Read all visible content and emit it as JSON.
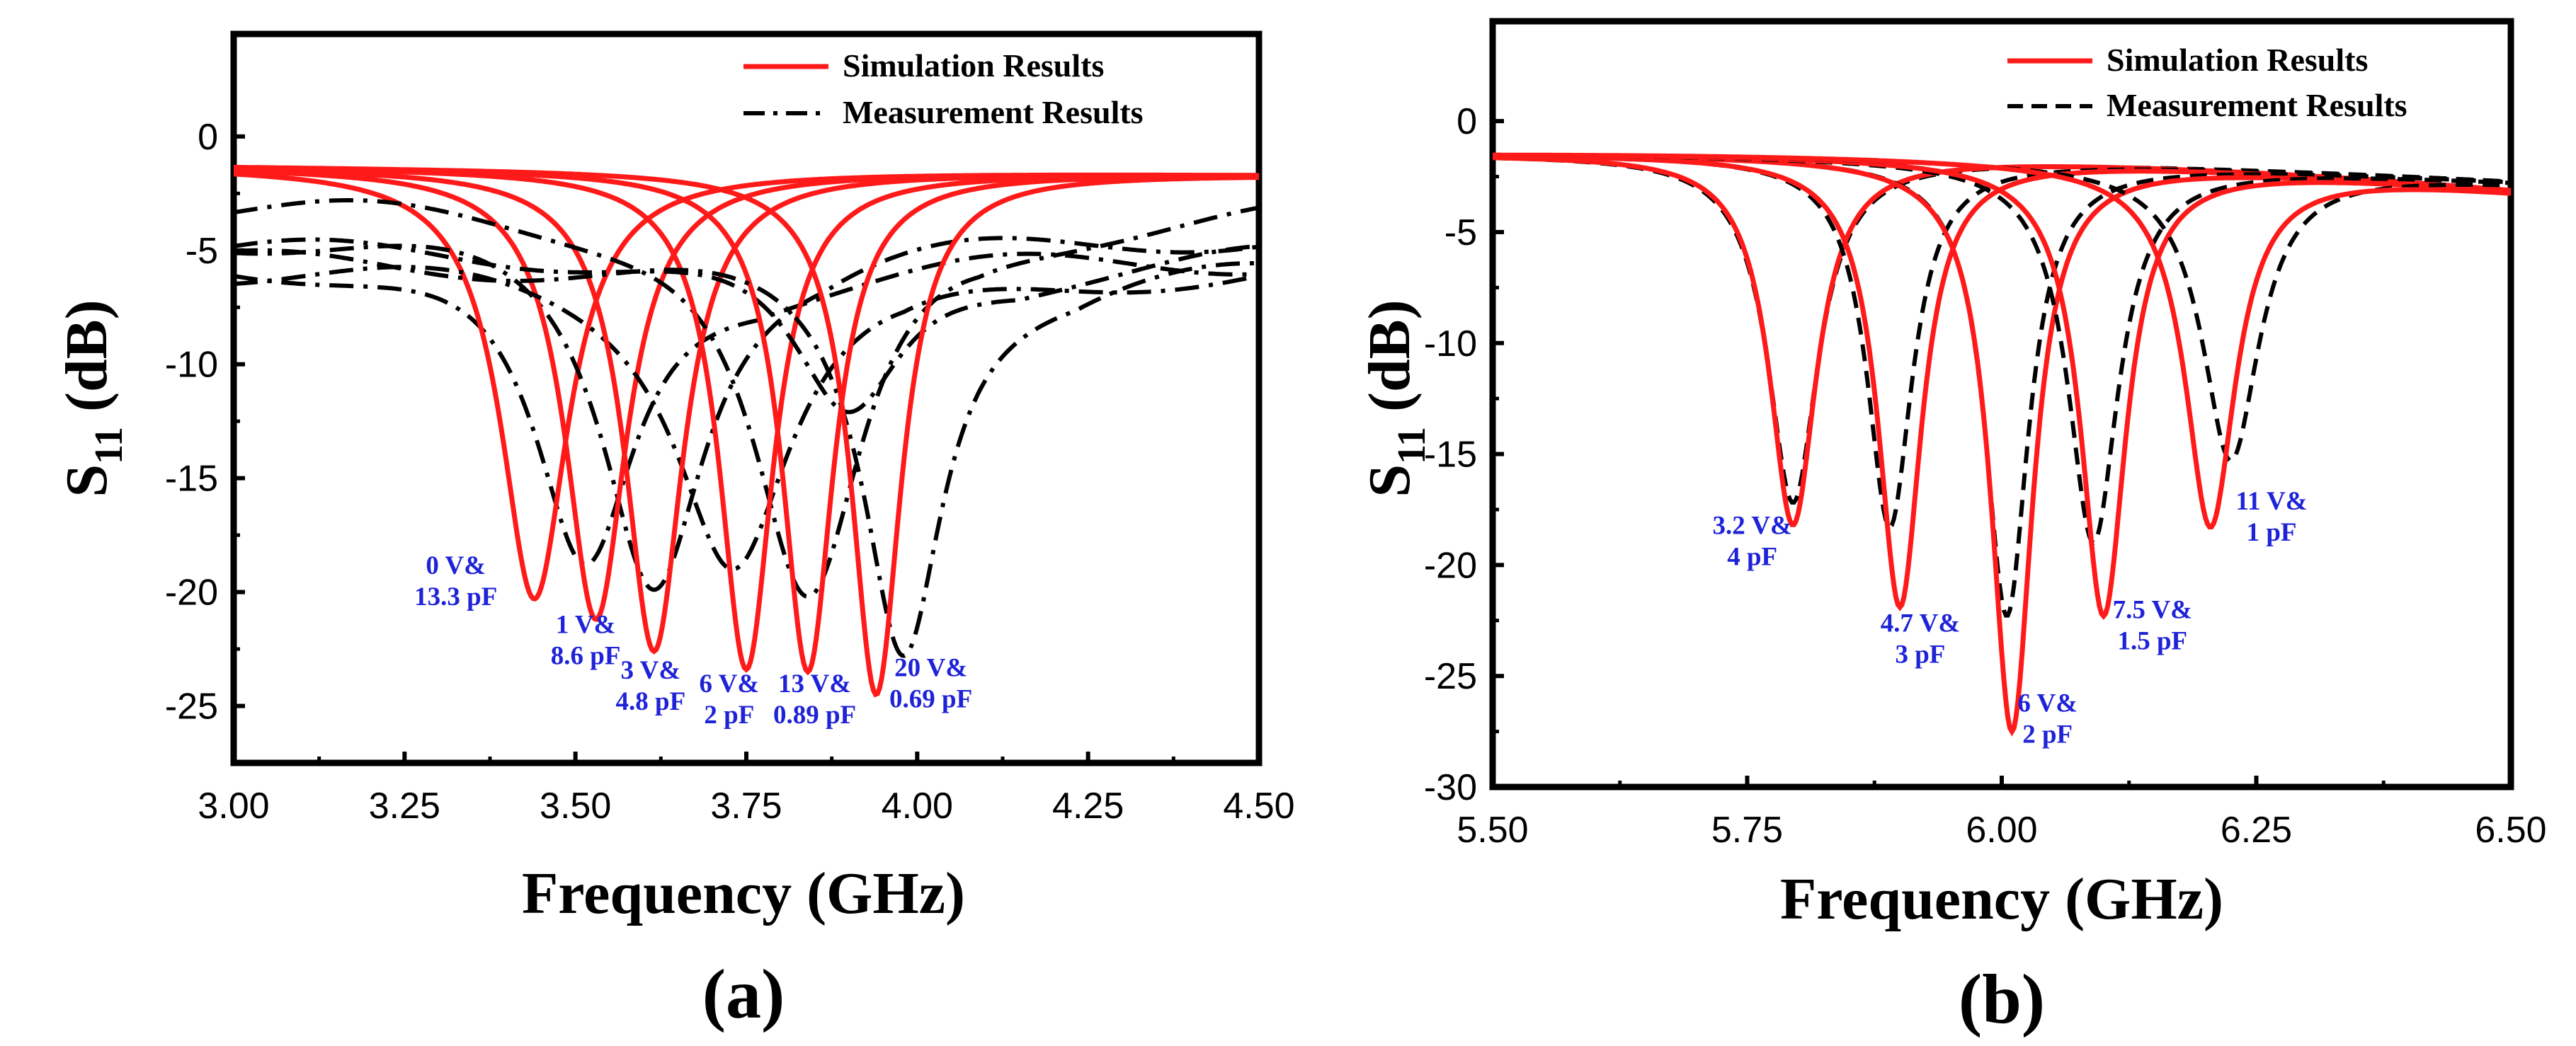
{
  "colors": {
    "simulation": "#ff1a1a",
    "measurement": "#000000",
    "annotation": "#1f23d8"
  },
  "chart_data": [
    {
      "type": "line",
      "panel_label": "(a)",
      "xlabel": "Frequency (GHz)",
      "ylabel": "S11 (dB)",
      "ylabel_main": "S",
      "ylabel_sub": "11",
      "ylabel_unit": "(dB)",
      "xlim": [
        3.0,
        4.5
      ],
      "ylim": [
        -27.5,
        4.5
      ],
      "xticks": [
        "3.00",
        "3.25",
        "3.50",
        "3.75",
        "4.00",
        "4.25",
        "4.50"
      ],
      "yticks": [
        "0",
        "-5",
        "-10",
        "-15",
        "-20",
        "-25"
      ],
      "legend": {
        "placement": "top-right",
        "entries": [
          "Simulation Results",
          "Measurement Results"
        ],
        "measurement_style": "dash-dot"
      },
      "series": [
        {
          "name": "0 V& 13.3 pF",
          "f0": 3.44,
          "min_sim": -20.3,
          "bw_sim": 0.06,
          "f_meas": 3.515,
          "min_meas": -18.8,
          "bw_meas": 0.09,
          "meas_base": -5.3
        },
        {
          "name": "1 V& 8.6 pF",
          "f0": 3.53,
          "min_sim": -21.2,
          "bw_sim": 0.055,
          "f_meas": 3.615,
          "min_meas": -19.9,
          "bw_meas": 0.09,
          "meas_base": -4.2
        },
        {
          "name": "3 V& 4.8 pF",
          "f0": 3.615,
          "min_sim": -22.6,
          "bw_sim": 0.052,
          "f_meas": 3.73,
          "min_meas": -19.0,
          "bw_meas": 0.1,
          "meas_base": -5.7
        },
        {
          "name": "6 V& 2 pF",
          "f0": 3.75,
          "min_sim": -23.4,
          "bw_sim": 0.048,
          "f_meas": 3.84,
          "min_meas": -20.2,
          "bw_meas": 0.1,
          "meas_base": -3.0
        },
        {
          "name": "13 V& 0.89 pF",
          "f0": 3.84,
          "min_sim": -23.5,
          "bw_sim": 0.046,
          "f_meas": 3.9,
          "min_meas": -12.1,
          "bw_meas": 0.1,
          "meas_base": -5.0
        },
        {
          "name": "20 V& 0.69 pF",
          "f0": 3.94,
          "min_sim": -24.5,
          "bw_sim": 0.045,
          "f_meas": 3.98,
          "min_meas": -22.8,
          "bw_meas": 0.07,
          "meas_base": -5.5
        }
      ],
      "annotations": [
        {
          "lines": [
            "0 V&",
            "13.3 pF"
          ],
          "x": 3.325,
          "y": -19.2
        },
        {
          "lines": [
            "1 V&",
            "8.6 pF"
          ],
          "x": 3.515,
          "y": -21.8
        },
        {
          "lines": [
            "3 V&",
            "4.8 pF"
          ],
          "x": 3.61,
          "y": -23.8
        },
        {
          "lines": [
            "6 V&",
            "2 pF"
          ],
          "x": 3.725,
          "y": -24.4
        },
        {
          "lines": [
            "13 V&",
            "0.89 pF"
          ],
          "x": 3.85,
          "y": -24.4
        },
        {
          "lines": [
            "20 V&",
            "0.69 pF"
          ],
          "x": 4.02,
          "y": -23.7
        }
      ]
    },
    {
      "type": "line",
      "panel_label": "(b)",
      "xlabel": "Frequency (GHz)",
      "ylabel": "S11 (dB)",
      "ylabel_main": "S",
      "ylabel_sub": "11",
      "ylabel_unit": "(dB)",
      "xlim": [
        5.5,
        6.5
      ],
      "ylim": [
        -30,
        4.5
      ],
      "xticks": [
        "5.50",
        "5.75",
        "6.00",
        "6.25",
        "6.50"
      ],
      "yticks": [
        "0",
        "-5",
        "-10",
        "-15",
        "-20",
        "-25",
        "-30"
      ],
      "legend": {
        "placement": "top-right",
        "entries": [
          "Simulation Results",
          "Measurement Results"
        ],
        "measurement_style": "dashed"
      },
      "series": [
        {
          "name": "3.2 V& 4 pF",
          "f0": 5.795,
          "min_sim": -18.2,
          "bw_sim": 0.028,
          "f_meas": 5.795,
          "min_meas": -17.2,
          "bw_meas": 0.03,
          "meas_base": -1.5
        },
        {
          "name": "4.7 V& 3 pF",
          "f0": 5.9,
          "min_sim": -21.9,
          "bw_sim": 0.026,
          "f_meas": 5.89,
          "min_meas": -18.3,
          "bw_meas": 0.027,
          "meas_base": -1.5
        },
        {
          "name": "6 V& 2 pF",
          "f0": 6.01,
          "min_sim": -27.5,
          "bw_sim": 0.025,
          "f_meas": 6.005,
          "min_meas": -22.3,
          "bw_meas": 0.026,
          "meas_base": -1.5
        },
        {
          "name": "7.5 V& 1.5 pF",
          "f0": 6.1,
          "min_sim": -22.3,
          "bw_sim": 0.027,
          "f_meas": 6.09,
          "min_meas": -19.0,
          "bw_meas": 0.03,
          "meas_base": -1.5
        },
        {
          "name": "11 V& 1 pF",
          "f0": 6.205,
          "min_sim": -18.3,
          "bw_sim": 0.03,
          "f_meas": 6.225,
          "min_meas": -15.3,
          "bw_meas": 0.034,
          "meas_base": -1.5
        }
      ],
      "annotations": [
        {
          "lines": [
            "3.2 V&",
            "4 pF"
          ],
          "x": 5.755,
          "y": -18.6
        },
        {
          "lines": [
            "4.7 V&",
            "3 pF"
          ],
          "x": 5.92,
          "y": -23.0
        },
        {
          "lines": [
            "6 V&",
            "2 pF"
          ],
          "x": 6.045,
          "y": -26.6
        },
        {
          "lines": [
            "7.5 V&",
            "1.5 pF"
          ],
          "x": 6.148,
          "y": -22.4
        },
        {
          "lines": [
            "11 V&",
            "1 pF"
          ],
          "x": 6.265,
          "y": -17.5
        }
      ]
    }
  ]
}
